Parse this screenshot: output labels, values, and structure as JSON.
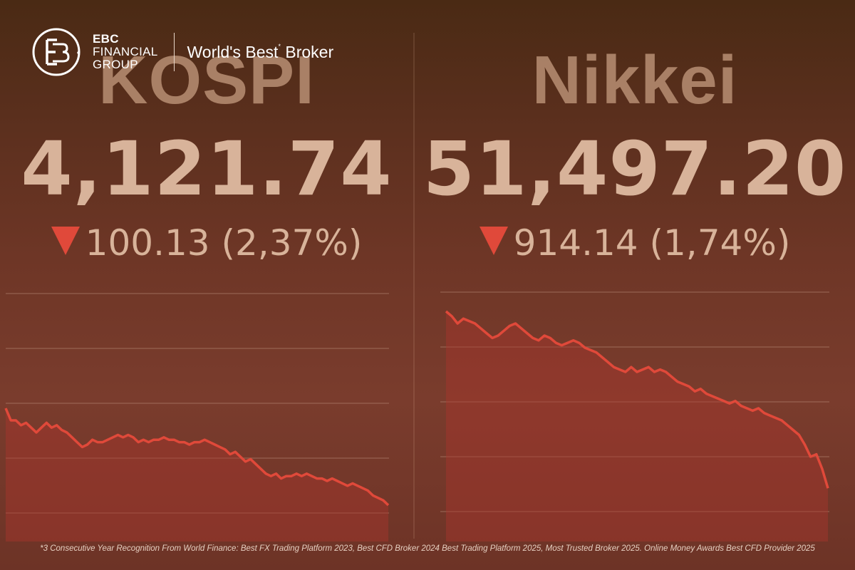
{
  "brand": {
    "line1": "EBC",
    "line2": "FINANCIAL",
    "line3": "GROUP",
    "tagline": "World's Best",
    "tagline_sup": "*",
    "tagline_end": " Broker"
  },
  "panels": [
    {
      "name": "KOSPI",
      "value": "4,121.74",
      "change": "100.13 (2,37%)",
      "direction": "down"
    },
    {
      "name": "Nikkei",
      "value": "51,497.20",
      "change": "914.14 (1,74%)",
      "direction": "down"
    }
  ],
  "footnote": "*3 Consecutive Year Recognition From World Finance: Best FX Trading Platform 2023, Best CFD Broker 2024 Best Trading Platform 2025, Most Trusted Broker 2025.  Online Money Awards Best CFD Provider 2025",
  "colors": {
    "line": "#e0493a",
    "fill": "#a8362c",
    "grid": "#c59c86",
    "arrow": "#e0493a"
  },
  "chart_data": [
    {
      "type": "area",
      "title": "KOSPI",
      "gridlines": 5,
      "ylim": [
        0,
        100
      ],
      "values": [
        55,
        50,
        50,
        48,
        49,
        47,
        45,
        47,
        49,
        47,
        48,
        46,
        45,
        43,
        41,
        39,
        40,
        42,
        41,
        41,
        42,
        43,
        44,
        43,
        44,
        43,
        41,
        42,
        41,
        42,
        42,
        43,
        42,
        42,
        41,
        41,
        40,
        41,
        41,
        42,
        41,
        40,
        39,
        38,
        36,
        37,
        35,
        33,
        34,
        32,
        30,
        28,
        27,
        28,
        26,
        27,
        27,
        28,
        27,
        28,
        27,
        26,
        26,
        25,
        26,
        25,
        24,
        23,
        24,
        23,
        22,
        21,
        19,
        18,
        17,
        15
      ]
    },
    {
      "type": "area",
      "title": "Nikkei",
      "gridlines": 5,
      "ylim": [
        0,
        100
      ],
      "values": [
        95,
        93,
        90,
        92,
        91,
        90,
        88,
        86,
        84,
        85,
        87,
        89,
        90,
        88,
        86,
        84,
        83,
        85,
        84,
        82,
        81,
        82,
        83,
        82,
        80,
        79,
        78,
        76,
        74,
        72,
        71,
        70,
        72,
        70,
        71,
        72,
        70,
        71,
        70,
        68,
        66,
        65,
        64,
        62,
        63,
        61,
        60,
        59,
        58,
        57,
        58,
        56,
        55,
        54,
        55,
        53,
        52,
        51,
        50,
        48,
        46,
        44,
        40,
        35,
        36,
        30,
        22
      ]
    }
  ]
}
